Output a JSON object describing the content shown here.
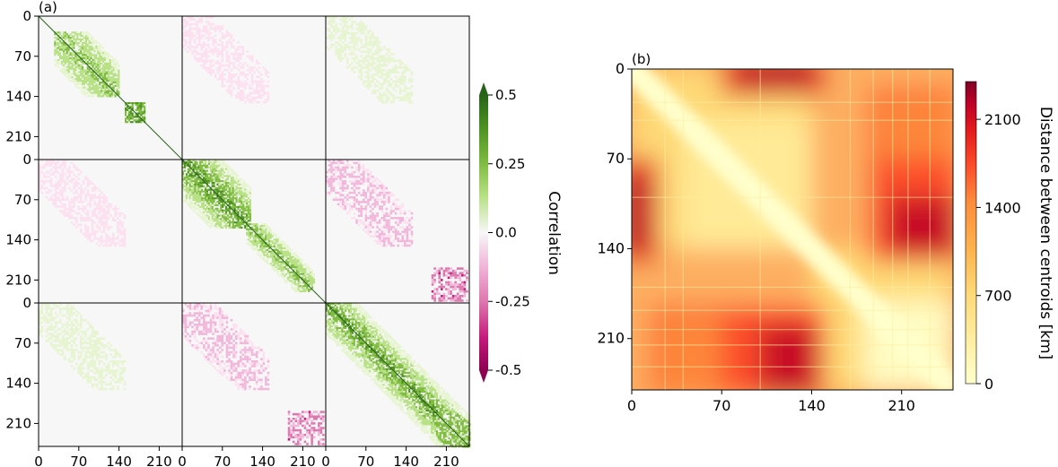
{
  "chart_data": [
    {
      "type": "heatmap",
      "panel_label": "(a)",
      "grid": "3x3 blocks",
      "block_ticks": [
        "0",
        "70",
        "140",
        "210"
      ],
      "block_tick_values": [
        0,
        70,
        140,
        210
      ],
      "block_size": 250,
      "colorbar": {
        "label": "Correlation",
        "ticks": [
          "0.5",
          "0.25",
          "0.0",
          "-0.25",
          "-0.5"
        ],
        "tick_values": [
          0.5,
          0.25,
          0.0,
          -0.25,
          -0.5
        ],
        "range": [
          -0.5,
          0.5
        ],
        "colormap": "PiYG",
        "extend": "both"
      },
      "blocks": [
        {
          "row": 0,
          "col": 0,
          "kind": "diagonal",
          "sign": "positive"
        },
        {
          "row": 0,
          "col": 1,
          "kind": "off-diagonal",
          "sign": "weak negative"
        },
        {
          "row": 0,
          "col": 2,
          "kind": "off-diagonal",
          "sign": "weak positive"
        },
        {
          "row": 1,
          "col": 0,
          "kind": "off-diagonal",
          "sign": "weak negative"
        },
        {
          "row": 1,
          "col": 1,
          "kind": "diagonal",
          "sign": "positive"
        },
        {
          "row": 1,
          "col": 2,
          "kind": "off-diagonal",
          "sign": "negative"
        },
        {
          "row": 2,
          "col": 0,
          "kind": "off-diagonal",
          "sign": "weak positive"
        },
        {
          "row": 2,
          "col": 1,
          "kind": "off-diagonal",
          "sign": "negative"
        },
        {
          "row": 2,
          "col": 2,
          "kind": "diagonal",
          "sign": "positive"
        }
      ]
    },
    {
      "type": "heatmap",
      "panel_label": "(b)",
      "ticks": [
        "0",
        "70",
        "140",
        "210"
      ],
      "tick_values": [
        0,
        70,
        140,
        210
      ],
      "size": 250,
      "colorbar": {
        "label": "Distance between centroids [km]",
        "ticks": [
          "2100",
          "1400",
          "700",
          "0"
        ],
        "tick_values": [
          2100,
          1400,
          700,
          0
        ],
        "range": [
          0,
          2400
        ],
        "colormap": "YlOrRd"
      },
      "description_of_structure": "symmetric distance matrix, zero diagonal; high distances between indices ~0-140 and ~140-250"
    }
  ]
}
